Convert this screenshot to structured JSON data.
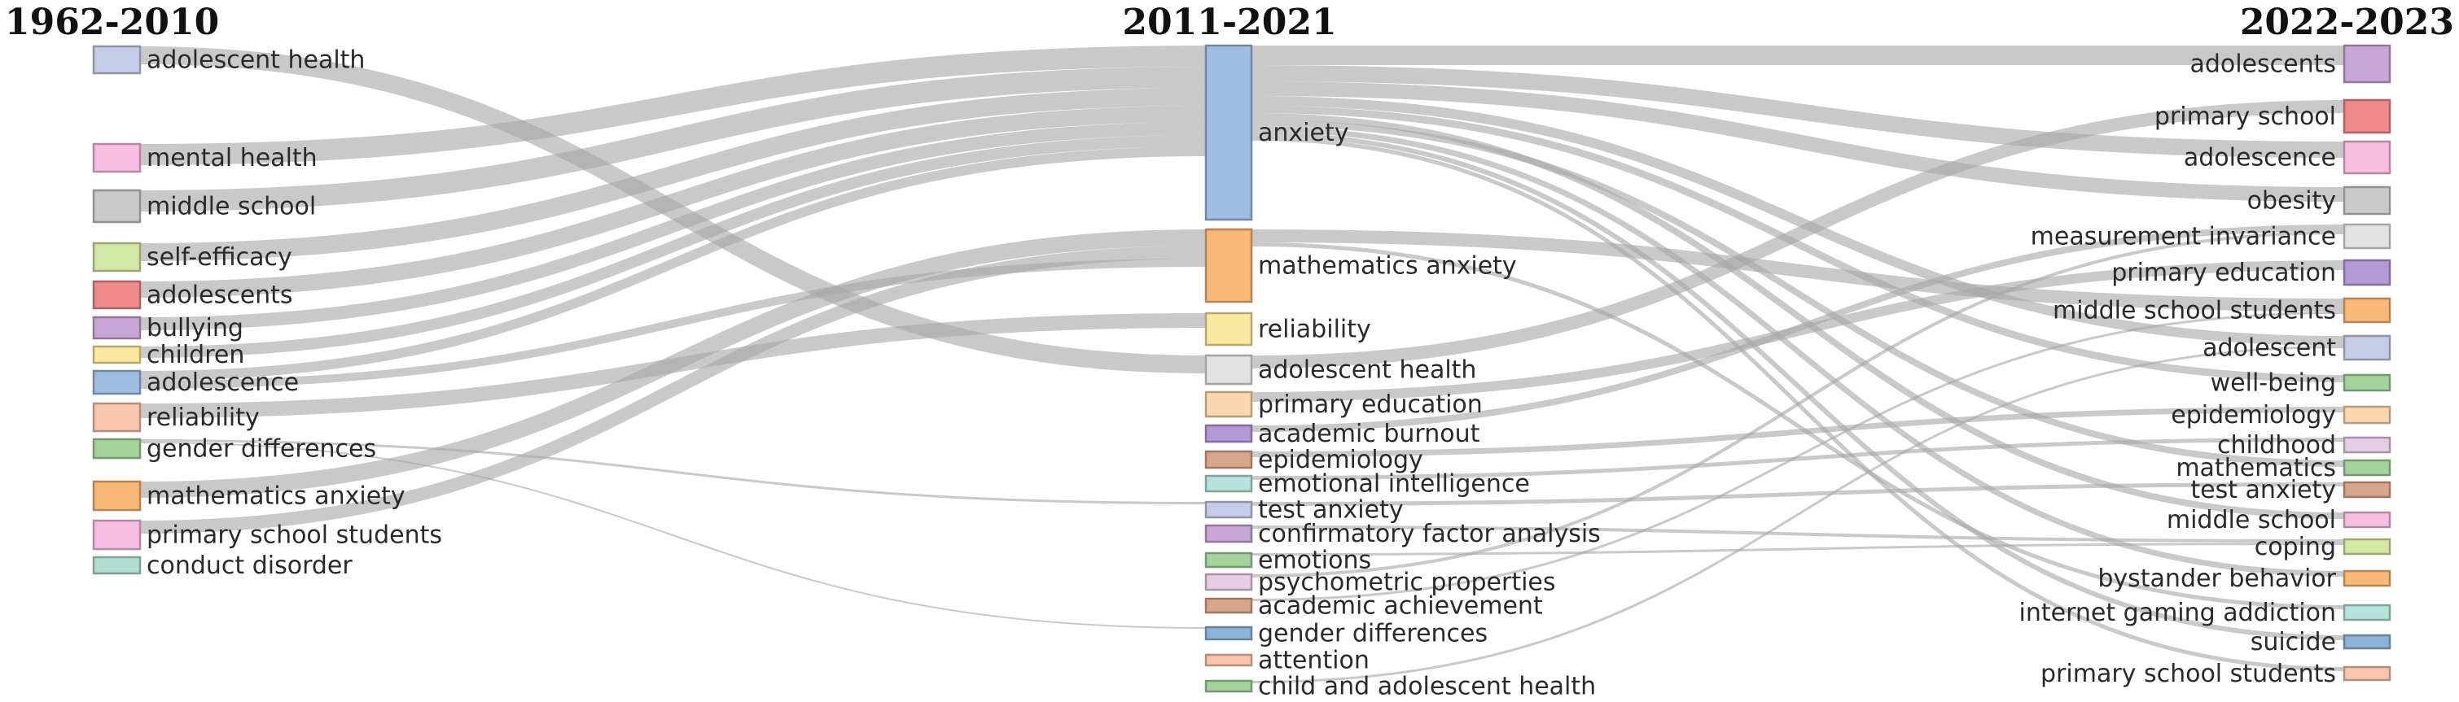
{
  "periods": [
    "1962-2010",
    "2011-2021",
    "2022-2023"
  ],
  "flow_color": "#a8a8a8",
  "nodes": {
    "left": [
      {
        "id": "l_adh",
        "label": "adolescent health",
        "color": "#c6cde8"
      },
      {
        "id": "l_mh",
        "label": "mental health",
        "color": "#f7bde1"
      },
      {
        "id": "l_ms",
        "label": "middle school",
        "color": "#c9c9c9"
      },
      {
        "id": "l_se",
        "label": "self-efficacy",
        "color": "#d4e8a6"
      },
      {
        "id": "l_ados",
        "label": "adolescents",
        "color": "#ef8a8a"
      },
      {
        "id": "l_bul",
        "label": "bullying",
        "color": "#c9a6d6"
      },
      {
        "id": "l_chi",
        "label": "children",
        "color": "#fbe9a0"
      },
      {
        "id": "l_adol",
        "label": "adolescence",
        "color": "#9fbde0"
      },
      {
        "id": "l_rel",
        "label": "reliability",
        "color": "#f9c5ad"
      },
      {
        "id": "l_gd",
        "label": "gender differences",
        "color": "#a4d39c"
      },
      {
        "id": "l_ma",
        "label": "mathematics anxiety",
        "color": "#f9b878"
      },
      {
        "id": "l_pss",
        "label": "primary school students",
        "color": "#f7bde1"
      },
      {
        "id": "l_cd",
        "label": "conduct disorder",
        "color": "#b3ddd0"
      }
    ],
    "middle": [
      {
        "id": "m_anx",
        "label": "anxiety",
        "color": "#9fbde0"
      },
      {
        "id": "m_ma",
        "label": "mathematics anxiety",
        "color": "#f9b878"
      },
      {
        "id": "m_rel",
        "label": "reliability",
        "color": "#fbe9a0"
      },
      {
        "id": "m_adh",
        "label": "adolescent health",
        "color": "#e2e2e2"
      },
      {
        "id": "m_pe",
        "label": "primary education",
        "color": "#fbd7b0"
      },
      {
        "id": "m_ab",
        "label": "academic burnout",
        "color": "#b39ad6"
      },
      {
        "id": "m_epi",
        "label": "epidemiology",
        "color": "#d9a58a"
      },
      {
        "id": "m_ei",
        "label": "emotional intelligence",
        "color": "#b3e3db"
      },
      {
        "id": "m_ta",
        "label": "test anxiety",
        "color": "#c6cde8"
      },
      {
        "id": "m_cfa",
        "label": "confirmatory factor analysis",
        "color": "#c9a6d6"
      },
      {
        "id": "m_emo",
        "label": "emotions",
        "color": "#a4d39c"
      },
      {
        "id": "m_pp",
        "label": "psychometric properties",
        "color": "#e6cde6"
      },
      {
        "id": "m_aa",
        "label": "academic achievement",
        "color": "#d9a58a"
      },
      {
        "id": "m_gd",
        "label": "gender differences",
        "color": "#8fb3d6"
      },
      {
        "id": "m_att",
        "label": "attention",
        "color": "#f9c5ad"
      },
      {
        "id": "m_cah",
        "label": "child and adolescent health",
        "color": "#a4d39c"
      }
    ],
    "right": [
      {
        "id": "r_ados",
        "label": "adolescents",
        "color": "#c9a6d6"
      },
      {
        "id": "r_ps",
        "label": "primary school",
        "color": "#ef8a8a"
      },
      {
        "id": "r_adol",
        "label": "adolescence",
        "color": "#f7bde1"
      },
      {
        "id": "r_ob",
        "label": "obesity",
        "color": "#c9c9c9"
      },
      {
        "id": "r_mi",
        "label": "measurement invariance",
        "color": "#e2e2e2"
      },
      {
        "id": "r_pe",
        "label": "primary education",
        "color": "#b39ad6"
      },
      {
        "id": "r_mss",
        "label": "middle school students",
        "color": "#f9b878"
      },
      {
        "id": "r_adt",
        "label": "adolescent",
        "color": "#c6cde8"
      },
      {
        "id": "r_wb",
        "label": "well-being",
        "color": "#a4d39c"
      },
      {
        "id": "r_epi",
        "label": "epidemiology",
        "color": "#fbd7b0"
      },
      {
        "id": "r_ch",
        "label": "childhood",
        "color": "#e6cde6"
      },
      {
        "id": "r_math",
        "label": "mathematics",
        "color": "#a4d39c"
      },
      {
        "id": "r_ta",
        "label": "test anxiety",
        "color": "#d9a58a"
      },
      {
        "id": "r_ms",
        "label": "middle school",
        "color": "#f7bde1"
      },
      {
        "id": "r_cop",
        "label": "coping",
        "color": "#d4e8a6"
      },
      {
        "id": "r_bb",
        "label": "bystander behavior",
        "color": "#f9b878"
      },
      {
        "id": "r_iga",
        "label": "internet gaming addiction",
        "color": "#b3e3db"
      },
      {
        "id": "r_sui",
        "label": "suicide",
        "color": "#8fb3d6"
      },
      {
        "id": "r_pss",
        "label": "primary school students",
        "color": "#f9c5ad"
      }
    ]
  },
  "links": [
    {
      "source": "l_mh",
      "target": "m_anx"
    },
    {
      "source": "l_ms",
      "target": "m_anx"
    },
    {
      "source": "l_se",
      "target": "m_anx"
    },
    {
      "source": "l_ados",
      "target": "m_anx"
    },
    {
      "source": "l_bul",
      "target": "m_anx"
    },
    {
      "source": "l_chi",
      "target": "m_anx"
    },
    {
      "source": "l_adol",
      "target": "m_anx"
    },
    {
      "source": "l_adh",
      "target": "m_adh"
    },
    {
      "source": "l_rel",
      "target": "m_rel"
    },
    {
      "source": "l_gd",
      "target": "m_ta"
    },
    {
      "source": "l_gd",
      "target": "m_gd"
    },
    {
      "source": "l_ma",
      "target": "m_ma"
    },
    {
      "source": "l_pss",
      "target": "m_ma"
    },
    {
      "source": "l_adol",
      "target": "m_ma"
    },
    {
      "source": "m_anx",
      "target": "r_ados"
    },
    {
      "source": "m_anx",
      "target": "r_adol"
    },
    {
      "source": "m_anx",
      "target": "r_ob"
    },
    {
      "source": "m_anx",
      "target": "r_adt"
    },
    {
      "source": "m_anx",
      "target": "r_wb"
    },
    {
      "source": "m_anx",
      "target": "r_ms"
    },
    {
      "source": "m_anx",
      "target": "r_math"
    },
    {
      "source": "m_anx",
      "target": "r_bb"
    },
    {
      "source": "m_anx",
      "target": "r_sui"
    },
    {
      "source": "m_anx",
      "target": "r_pss"
    },
    {
      "source": "m_ma",
      "target": "r_mss"
    },
    {
      "source": "m_ma",
      "target": "r_iga"
    },
    {
      "source": "m_adh",
      "target": "r_ps"
    },
    {
      "source": "m_pe",
      "target": "r_pe"
    },
    {
      "source": "m_ab",
      "target": "r_mi"
    },
    {
      "source": "m_epi",
      "target": "r_epi"
    },
    {
      "source": "m_ei",
      "target": "r_ch"
    },
    {
      "source": "m_ta",
      "target": "r_ta"
    },
    {
      "source": "m_cfa",
      "target": "r_cop"
    },
    {
      "source": "m_emo",
      "target": "r_cop"
    },
    {
      "source": "m_pp",
      "target": "r_mi"
    },
    {
      "source": "m_aa",
      "target": "r_mss"
    },
    {
      "source": "m_cah",
      "target": "r_adt"
    }
  ]
}
